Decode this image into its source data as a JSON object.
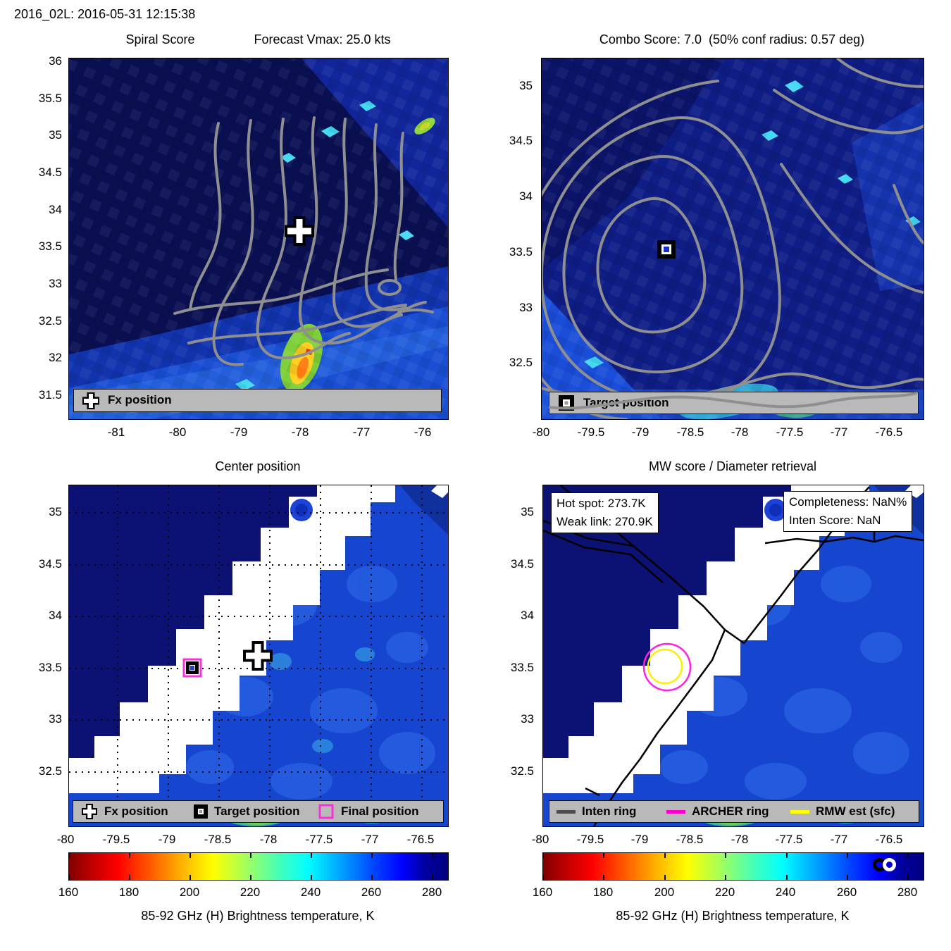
{
  "header": {
    "title": "2016_02L: 2016-05-31 12:15:38"
  },
  "colors": {
    "legend_bg": "#b9b9b9",
    "contour_gray": "#8f8f8f",
    "archer_ring": "#ff00cc",
    "rmw_ring": "#ffff00",
    "inten_ring": "#4d4d4d",
    "final_position": "#ff00cc",
    "land_navy": "#0c1274",
    "ocean_blue": "#1646cf"
  },
  "colorbar": {
    "ticks": [
      "160",
      "180",
      "200",
      "220",
      "240",
      "260",
      "280"
    ],
    "tick_values": [
      160,
      180,
      200,
      220,
      240,
      260,
      280
    ],
    "range": [
      160,
      285
    ],
    "label": "85-92 GHz (H) Brightness temperature, K"
  },
  "chart_data": [
    {
      "type": "heatmap",
      "panel": "top-left",
      "title": "Spiral Score",
      "title_right": "Forecast Vmax: 25.0 kts",
      "xticks": [
        "-81",
        "-80",
        "-79",
        "-78",
        "-77",
        "-76"
      ],
      "yticks": [
        "36",
        "35.5",
        "35",
        "34.5",
        "34",
        "33.5",
        "33",
        "32.5",
        "32",
        "31.5"
      ],
      "xlim": [
        -81.8,
        -75.6
      ],
      "ylim": [
        31.2,
        36.05
      ],
      "legend": [
        {
          "label": "Fx position",
          "marker": "white-cross"
        }
      ],
      "markers": [
        {
          "name": "Fx position",
          "lon": -78.0,
          "lat": 33.7,
          "marker": "white-cross"
        }
      ],
      "overlay": "gray spiral-score contour lines",
      "field": "85-92 GHz (H) brightness temperature"
    },
    {
      "type": "heatmap",
      "panel": "top-right",
      "title": "Combo Score: 7.0  (50% conf radius: 0.57 deg)",
      "xticks": [
        "-80",
        "-79.5",
        "-79",
        "-78.5",
        "-78",
        "-77.5",
        "-77",
        "-76.5"
      ],
      "yticks": [
        "35",
        "34.5",
        "34",
        "33.5",
        "33",
        "32.5"
      ],
      "xlim": [
        -80.0,
        -76.2
      ],
      "ylim": [
        32.0,
        35.25
      ],
      "legend": [
        {
          "label": "Target position",
          "marker": "black-square"
        }
      ],
      "markers": [
        {
          "name": "Target position",
          "lon": -78.7,
          "lat": 33.5,
          "marker": "black-square"
        }
      ],
      "overlay": "gray combo-score contour rings",
      "field": "85-92 GHz (H) brightness temperature"
    },
    {
      "type": "heatmap",
      "panel": "bottom-left",
      "title": "Center position",
      "xticks": [
        "-80",
        "-79.5",
        "-79",
        "-78.5",
        "-78",
        "-77.5",
        "-77",
        "-76.5"
      ],
      "yticks": [
        "35",
        "34.5",
        "34",
        "33.5",
        "33",
        "32.5"
      ],
      "xlim": [
        -80.0,
        -76.2
      ],
      "ylim": [
        31.95,
        35.25
      ],
      "grid": "black dotted 0.5 deg",
      "legend": [
        {
          "label": "Fx position",
          "marker": "white-cross"
        },
        {
          "label": "Target position",
          "marker": "black-square"
        },
        {
          "label": "Final position",
          "marker": "magenta-square"
        }
      ],
      "markers": [
        {
          "name": "Fx position",
          "lon": -78.1,
          "lat": 33.6,
          "marker": "white-cross"
        },
        {
          "name": "Target position",
          "lon": -78.75,
          "lat": 33.5,
          "marker": "black-square"
        },
        {
          "name": "Final position",
          "lon": -78.75,
          "lat": 33.5,
          "marker": "magenta-square"
        }
      ],
      "field": "85-92 GHz (H) brightness temperature"
    },
    {
      "type": "heatmap",
      "panel": "bottom-right",
      "title": "MW score / Diameter retrieval",
      "xticks": [
        "-80",
        "-79.5",
        "-79",
        "-78.5",
        "-78",
        "-77.5",
        "-77",
        "-76.5"
      ],
      "yticks": [
        "35",
        "34.5",
        "34",
        "33.5",
        "33",
        "32.5"
      ],
      "xlim": [
        -80.0,
        -76.2
      ],
      "ylim": [
        31.95,
        35.25
      ],
      "annotations": [
        {
          "text": "Hot spot: 273.7K"
        },
        {
          "text": "Weak link: 270.9K"
        },
        {
          "text": "Completeness: NaN%"
        },
        {
          "text": "Inten Score: NaN"
        }
      ],
      "legend": [
        {
          "label": "Inten ring",
          "color": "#4d4d4d"
        },
        {
          "label": "ARCHER ring",
          "color": "#ff00cc"
        },
        {
          "label": "RMW est (sfc)",
          "color": "#ffff00"
        }
      ],
      "rings": [
        {
          "name": "ARCHER ring",
          "lon": -78.8,
          "lat": 33.5,
          "color": "#ff00cc"
        },
        {
          "name": "RMW est (sfc)",
          "lon": -78.8,
          "lat": 33.5,
          "color": "#ffff00"
        }
      ],
      "colorbar_markers": [
        {
          "name": "weak link",
          "value": 270.9,
          "style": "black-circle"
        },
        {
          "name": "hot spot",
          "value": 273.7,
          "style": "white-circle"
        }
      ],
      "field": "85-92 GHz (H) brightness temperature"
    }
  ]
}
